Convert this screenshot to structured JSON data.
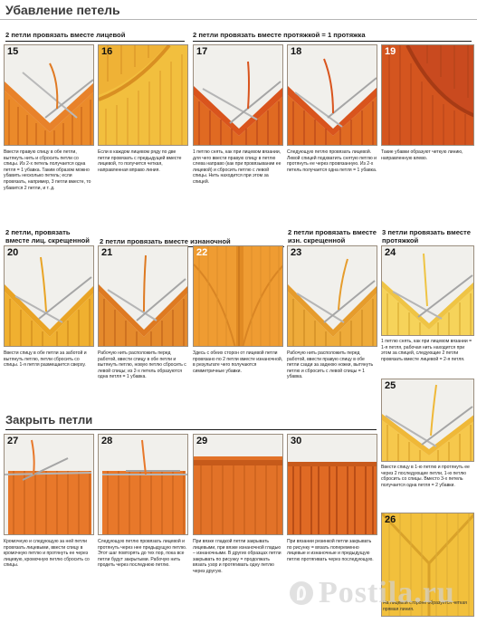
{
  "page_title": "Убавление петель",
  "sections": {
    "s1": "2 петли провязать вместе лицевой",
    "s2": "2 петли провязать вместе протяжкой = 1 протяжка",
    "s3": "2 петли, провязать вместе лиц. скрещенной",
    "s4": "2 петли провязать вместе изнаночной",
    "s5": "2 петли провязать вместе изн. скрещенной",
    "s6": "3 петли провязать вместе протяжкой",
    "close": "Закрыть петли"
  },
  "panels": [
    {
      "n": "15",
      "caption": "Ввести правую спицу в обе петли, вытянуть нить и сбросить петли со спицы. Из 2-х петель получается одна петля = 1 убавка. Таким образом можно убавить несколько петель; если провязать, например, 3 петли вместе, то убавится 2 петли, и т. д."
    },
    {
      "n": "16",
      "caption": "Если в каждом лицевом ряду по две петли провязать с предыдущей вместе лицевой, то получится четкая, направленная вправо линия."
    },
    {
      "n": "17",
      "caption": "1 петлю снять, как при лицевом вязании, для чего ввести правую спицу в петлю слева направо (как при провязывании ее лицевой) и сбросить петлю с левой спицы. Нить находится при этом за спицей."
    },
    {
      "n": "18",
      "caption": "Следующую петлю провязать лицевой. Левой спицей подхватить снятую петлю и протянуть ее через провязанную. Из 2-х петель получается одна петля = 1 убавка."
    },
    {
      "n": "19",
      "caption": "Такие убавки образуют четкую линию, направленную влево."
    },
    {
      "n": "20",
      "caption": "Ввести спицу в обе петли за заботой и вытянуть петлю, петли сбросить со спицы. 1-я петля размещается сверху."
    },
    {
      "n": "21",
      "caption": "Рабочую нить расположить перед работой, ввести спицу в обе петли и вытянуть петлю, новую петлю сбросить с левой спицы; из 2-х петель образуются одна петля = 1 убавка."
    },
    {
      "n": "22",
      "caption": "Здесь с обеих сторон от лицевой петли провязано по 2 петли вместе изнаночной, в результате чего получаются симметричные убавки."
    },
    {
      "n": "23",
      "caption": "Рабочую нить расположить перед работой, ввести правую спицу в обе петли сзади за заднюю ножки, вытянуть петлю и сбросить с левой спицы = 1 убавка."
    },
    {
      "n": "24",
      "caption": "1 петлю снять, как при лицевом вязании = 1-я петля, рабочая нить находится при этом за спицей, следующие 2 петли провязать вместе лицевой = 2-я петля."
    },
    {
      "n": "25",
      "caption": "Ввести спицу в 1-ю петлю и протянуть ее через 2 последующие петли, 1-ю петлю сбросить со спицы. Вместо 3-х петель получается одна петля = 2 убавки."
    },
    {
      "n": "26",
      "caption": "На лицевой стороне образуется четкая прямая линия."
    },
    {
      "n": "27",
      "caption": "Кромочную и следующую за ней петли провязать лицевыми, ввести спицу в кромочную петлю и протянуть ее через лицевую, кромочную петлю сбросить со спицы."
    },
    {
      "n": "28",
      "caption": "Следующую петлю провязать лицевой и протянуть через нее предыдущую петлю. Этот шаг повторять до тех пор, пока все петли будут закрытыми. Рабочую нить продеть через последнюю петлю."
    },
    {
      "n": "29",
      "caption": "При вязке гладкой петли закрывать лицевыми, при вязке изнаночной гладью – изнаночными. В других образцах петли закрывать по рисунку = продолжать вязать узор и протягивать одну петлю через другую."
    },
    {
      "n": "30",
      "caption": "При вязании резинкой петли закрывать по рисунку = вязать попеременно лицевые и изнаночные и предыдущую петлю протягивать через последующую."
    }
  ],
  "watermark": "Postila.ru",
  "colors": {
    "orange": "#e8822a",
    "deep_orange": "#d9541d",
    "yellow_orange": "#efb236",
    "yellow": "#f4cf52",
    "rust": "#c94a1f"
  }
}
